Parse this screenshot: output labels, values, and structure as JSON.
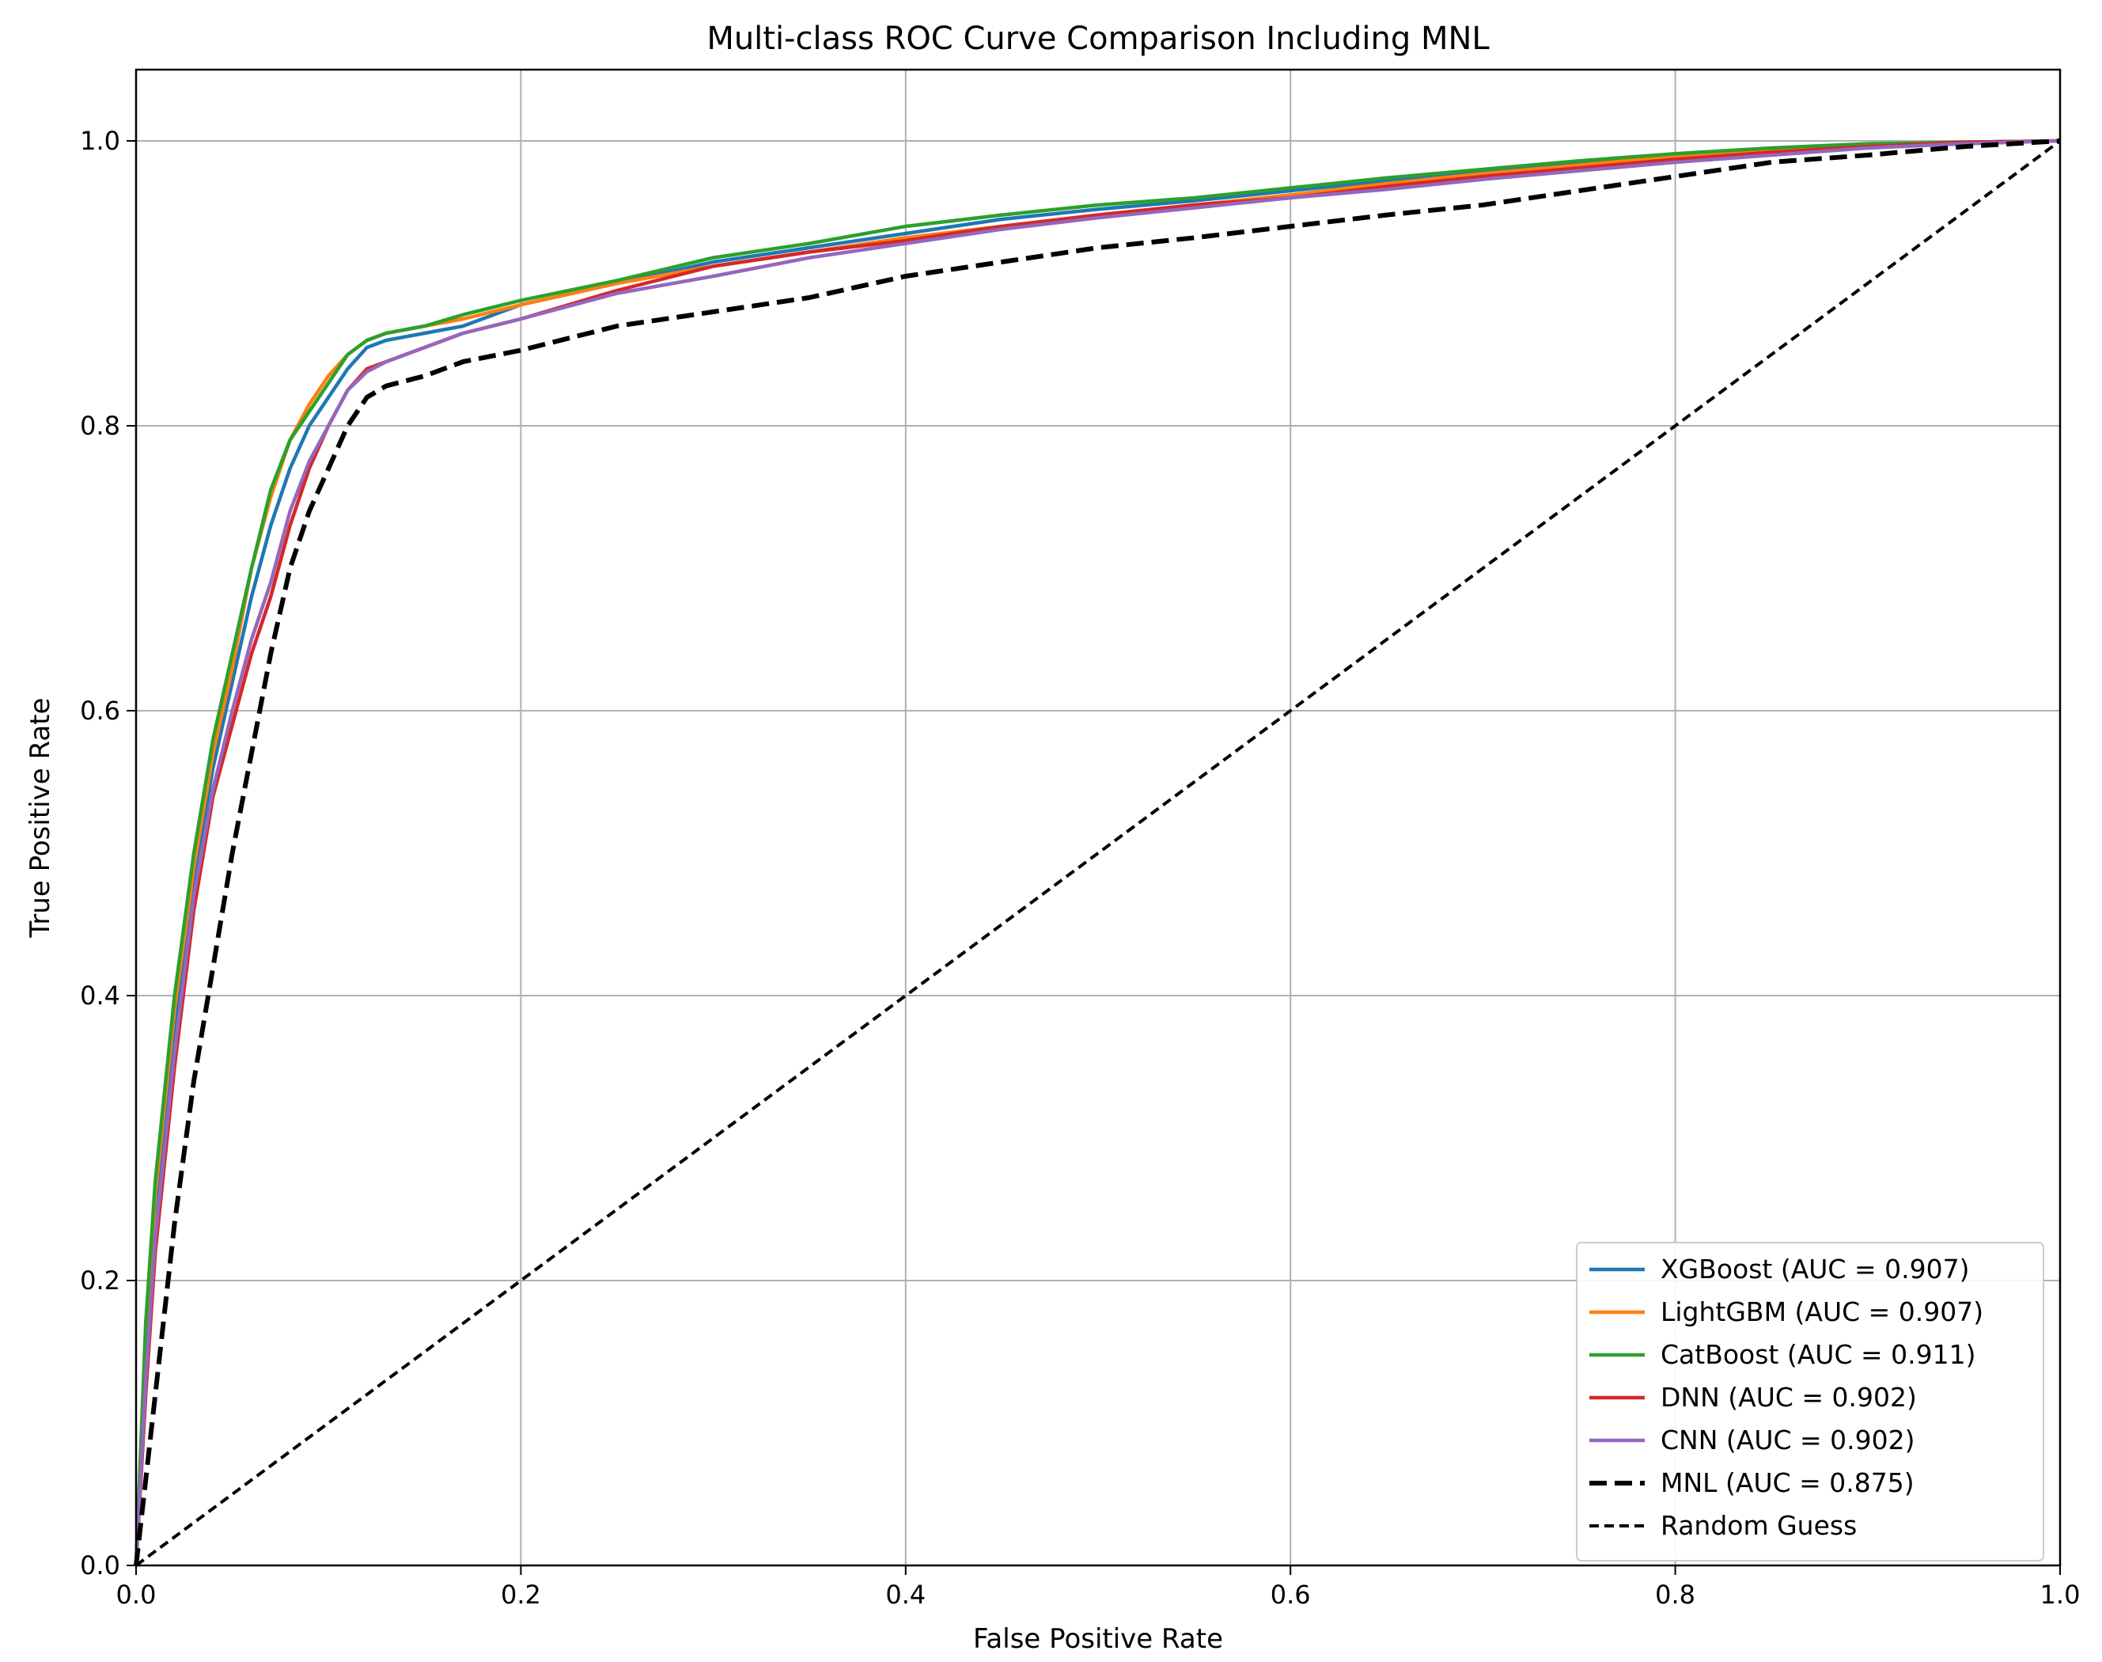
{
  "chart_data": {
    "type": "line",
    "title": "Multi-class ROC Curve Comparison Including MNL",
    "xlabel": "False Positive Rate",
    "ylabel": "True Positive Rate",
    "xlim": [
      0.0,
      1.0
    ],
    "ylim": [
      0.0,
      1.05
    ],
    "xticks": [
      0.0,
      0.2,
      0.4,
      0.6,
      0.8,
      1.0
    ],
    "yticks": [
      0.0,
      0.2,
      0.4,
      0.6,
      0.8,
      1.0
    ],
    "xtick_labels": [
      "0.0",
      "0.2",
      "0.4",
      "0.6",
      "0.8",
      "1.0"
    ],
    "ytick_labels": [
      "0.0",
      "0.2",
      "0.4",
      "0.6",
      "0.8",
      "1.0"
    ],
    "grid": true,
    "legend_position": "bottom-right",
    "series": [
      {
        "name": "XGBoost (AUC = 0.907)",
        "color": "#1f77b4",
        "dash": "solid",
        "x": [
          0,
          0.005,
          0.01,
          0.02,
          0.03,
          0.04,
          0.05,
          0.06,
          0.07,
          0.08,
          0.09,
          0.1,
          0.11,
          0.12,
          0.13,
          0.15,
          0.17,
          0.2,
          0.25,
          0.3,
          0.35,
          0.4,
          0.45,
          0.5,
          0.55,
          0.6,
          0.65,
          0.7,
          0.75,
          0.8,
          0.85,
          0.9,
          0.95,
          1.0
        ],
        "y": [
          0,
          0.15,
          0.25,
          0.38,
          0.48,
          0.56,
          0.62,
          0.68,
          0.73,
          0.77,
          0.8,
          0.82,
          0.84,
          0.855,
          0.86,
          0.865,
          0.87,
          0.885,
          0.9,
          0.915,
          0.925,
          0.935,
          0.945,
          0.952,
          0.958,
          0.965,
          0.972,
          0.978,
          0.984,
          0.99,
          0.994,
          0.997,
          0.999,
          1.0
        ]
      },
      {
        "name": "LightGBM (AUC = 0.907)",
        "color": "#ff7f0e",
        "dash": "solid",
        "x": [
          0,
          0.005,
          0.01,
          0.02,
          0.03,
          0.04,
          0.05,
          0.06,
          0.07,
          0.08,
          0.09,
          0.1,
          0.11,
          0.12,
          0.13,
          0.15,
          0.17,
          0.2,
          0.25,
          0.3,
          0.35,
          0.4,
          0.45,
          0.5,
          0.55,
          0.6,
          0.65,
          0.7,
          0.75,
          0.8,
          0.85,
          0.9,
          0.95,
          1.0
        ],
        "y": [
          0,
          0.16,
          0.26,
          0.39,
          0.49,
          0.57,
          0.63,
          0.7,
          0.75,
          0.79,
          0.815,
          0.835,
          0.85,
          0.86,
          0.865,
          0.87,
          0.875,
          0.885,
          0.9,
          0.912,
          0.922,
          0.932,
          0.94,
          0.948,
          0.955,
          0.962,
          0.97,
          0.977,
          0.983,
          0.989,
          0.993,
          0.996,
          0.999,
          1.0
        ]
      },
      {
        "name": "CatBoost (AUC = 0.911)",
        "color": "#2ca02c",
        "dash": "solid",
        "x": [
          0,
          0.005,
          0.01,
          0.02,
          0.03,
          0.04,
          0.05,
          0.06,
          0.07,
          0.08,
          0.09,
          0.1,
          0.11,
          0.12,
          0.13,
          0.15,
          0.17,
          0.2,
          0.25,
          0.3,
          0.35,
          0.4,
          0.45,
          0.5,
          0.55,
          0.6,
          0.65,
          0.7,
          0.75,
          0.8,
          0.85,
          0.9,
          0.95,
          1.0
        ],
        "y": [
          0,
          0.17,
          0.27,
          0.4,
          0.5,
          0.58,
          0.64,
          0.7,
          0.755,
          0.79,
          0.81,
          0.83,
          0.85,
          0.86,
          0.865,
          0.87,
          0.878,
          0.888,
          0.902,
          0.918,
          0.928,
          0.94,
          0.948,
          0.955,
          0.96,
          0.967,
          0.974,
          0.98,
          0.986,
          0.991,
          0.995,
          0.998,
          0.999,
          1.0
        ]
      },
      {
        "name": "DNN (AUC = 0.902)",
        "color": "#d62728",
        "dash": "solid",
        "x": [
          0,
          0.005,
          0.01,
          0.02,
          0.03,
          0.04,
          0.05,
          0.06,
          0.07,
          0.08,
          0.09,
          0.1,
          0.11,
          0.12,
          0.13,
          0.15,
          0.17,
          0.2,
          0.25,
          0.3,
          0.35,
          0.4,
          0.45,
          0.5,
          0.55,
          0.6,
          0.65,
          0.7,
          0.75,
          0.8,
          0.85,
          0.9,
          0.95,
          1.0
        ],
        "y": [
          0,
          0.12,
          0.22,
          0.35,
          0.46,
          0.54,
          0.59,
          0.64,
          0.68,
          0.73,
          0.77,
          0.8,
          0.825,
          0.84,
          0.845,
          0.855,
          0.865,
          0.875,
          0.895,
          0.912,
          0.922,
          0.93,
          0.94,
          0.948,
          0.955,
          0.96,
          0.968,
          0.975,
          0.981,
          0.987,
          0.992,
          0.996,
          0.999,
          1.0
        ]
      },
      {
        "name": "CNN (AUC = 0.902)",
        "color": "#9467bd",
        "dash": "solid",
        "x": [
          0,
          0.005,
          0.01,
          0.02,
          0.03,
          0.04,
          0.05,
          0.06,
          0.07,
          0.08,
          0.09,
          0.1,
          0.11,
          0.12,
          0.13,
          0.15,
          0.17,
          0.2,
          0.25,
          0.3,
          0.35,
          0.4,
          0.45,
          0.5,
          0.55,
          0.6,
          0.65,
          0.7,
          0.75,
          0.8,
          0.85,
          0.9,
          0.95,
          1.0
        ],
        "y": [
          0,
          0.13,
          0.23,
          0.36,
          0.47,
          0.545,
          0.6,
          0.65,
          0.69,
          0.74,
          0.775,
          0.8,
          0.825,
          0.838,
          0.845,
          0.855,
          0.865,
          0.875,
          0.893,
          0.905,
          0.918,
          0.928,
          0.938,
          0.946,
          0.953,
          0.96,
          0.966,
          0.973,
          0.979,
          0.985,
          0.99,
          0.995,
          0.998,
          1.0
        ]
      },
      {
        "name": "MNL (AUC = 0.875)",
        "color": "#000000",
        "dash": "dashed",
        "x": [
          0,
          0.005,
          0.01,
          0.02,
          0.03,
          0.04,
          0.05,
          0.06,
          0.07,
          0.08,
          0.09,
          0.1,
          0.11,
          0.12,
          0.13,
          0.15,
          0.17,
          0.2,
          0.25,
          0.3,
          0.35,
          0.4,
          0.45,
          0.5,
          0.55,
          0.6,
          0.65,
          0.7,
          0.75,
          0.8,
          0.85,
          0.9,
          0.95,
          1.0
        ],
        "y": [
          0,
          0.06,
          0.12,
          0.24,
          0.34,
          0.42,
          0.5,
          0.57,
          0.64,
          0.7,
          0.74,
          0.77,
          0.8,
          0.82,
          0.828,
          0.835,
          0.845,
          0.853,
          0.87,
          0.88,
          0.89,
          0.905,
          0.915,
          0.925,
          0.932,
          0.94,
          0.948,
          0.955,
          0.965,
          0.975,
          0.985,
          0.99,
          0.996,
          1.0
        ]
      },
      {
        "name": "Random Guess",
        "color": "#000000",
        "dash": "dotted-dash",
        "x": [
          0,
          1.0
        ],
        "y": [
          0,
          1.0
        ]
      }
    ]
  }
}
